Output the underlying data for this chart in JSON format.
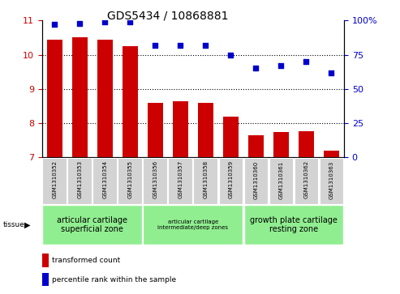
{
  "title": "GDS5434 / 10868881",
  "samples": [
    "GSM1310352",
    "GSM1310353",
    "GSM1310354",
    "GSM1310355",
    "GSM1310356",
    "GSM1310357",
    "GSM1310358",
    "GSM1310359",
    "GSM1310360",
    "GSM1310361",
    "GSM1310362",
    "GSM1310363"
  ],
  "bar_values": [
    10.45,
    10.52,
    10.45,
    10.25,
    8.6,
    8.63,
    8.6,
    8.2,
    7.65,
    7.75,
    7.77,
    7.2
  ],
  "dot_values": [
    97,
    98,
    99,
    99,
    82,
    82,
    82,
    75,
    65,
    67,
    70,
    62
  ],
  "ylim_left": [
    7,
    11
  ],
  "ylim_right": [
    0,
    100
  ],
  "yticks_left": [
    7,
    8,
    9,
    10,
    11
  ],
  "yticks_right": [
    0,
    25,
    50,
    75,
    100
  ],
  "bar_color": "#cc0000",
  "dot_color": "#0000cc",
  "group_configs": [
    {
      "start": 0,
      "end": 3,
      "label": "articular cartilage\nsuperficial zone",
      "color": "#90ee90",
      "fontsize": 7
    },
    {
      "start": 4,
      "end": 7,
      "label": "articular cartilage\nintermediate/deep zones",
      "color": "#90ee90",
      "fontsize": 5
    },
    {
      "start": 8,
      "end": 11,
      "label": "growth plate cartilage\nresting zone",
      "color": "#90ee90",
      "fontsize": 7
    }
  ],
  "tissue_label": "tissue",
  "legend_bar_label": "transformed count",
  "legend_dot_label": "percentile rank within the sample",
  "tick_bg_color": "#d3d3d3",
  "cell_border_color": "#ffffff",
  "grid_linestyle": ":",
  "grid_linewidth": 0.8,
  "bar_width": 0.6,
  "dot_marker": "s",
  "dot_size": 18,
  "title_fontsize": 10,
  "ytick_fontsize": 8,
  "xtick_fontsize": 5,
  "legend_fontsize": 6.5
}
